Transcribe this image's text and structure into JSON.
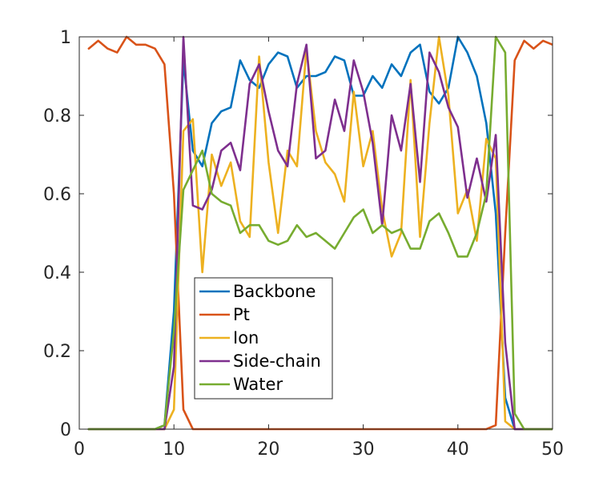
{
  "chart_data": {
    "type": "line",
    "title": "",
    "xlabel": "",
    "ylabel": "",
    "xlim": [
      0,
      50
    ],
    "ylim": [
      0,
      1
    ],
    "xticks": [
      0,
      10,
      20,
      30,
      40,
      50
    ],
    "yticks": [
      0,
      0.2,
      0.4,
      0.6,
      0.8,
      1
    ],
    "xtick_labels": [
      "0",
      "10",
      "20",
      "30",
      "40",
      "50"
    ],
    "ytick_labels": [
      "0",
      "0.2",
      "0.4",
      "0.6",
      "0.8",
      "1"
    ],
    "grid": false,
    "legend_position": "lower-left",
    "x": [
      1,
      2,
      3,
      4,
      5,
      6,
      7,
      8,
      9,
      10,
      11,
      12,
      13,
      14,
      15,
      16,
      17,
      18,
      19,
      20,
      21,
      22,
      23,
      24,
      25,
      26,
      27,
      28,
      29,
      30,
      31,
      32,
      33,
      34,
      35,
      36,
      37,
      38,
      39,
      40,
      41,
      42,
      43,
      44,
      45,
      46,
      47,
      48,
      49,
      50
    ],
    "series": [
      {
        "name": "Backbone",
        "color": "#0072BD",
        "values": [
          0,
          0,
          0,
          0,
          0,
          0,
          0,
          0,
          0.01,
          0.3,
          0.94,
          0.71,
          0.67,
          0.78,
          0.81,
          0.82,
          0.94,
          0.89,
          0.87,
          0.93,
          0.96,
          0.95,
          0.87,
          0.9,
          0.9,
          0.91,
          0.95,
          0.94,
          0.85,
          0.85,
          0.9,
          0.87,
          0.93,
          0.9,
          0.96,
          0.98,
          0.86,
          0.83,
          0.87,
          1.0,
          0.96,
          0.9,
          0.78,
          0.55,
          0.08,
          0,
          0,
          0,
          0,
          0
        ]
      },
      {
        "name": "Pt",
        "color": "#D95319",
        "values": [
          0.97,
          0.99,
          0.97,
          0.96,
          1.0,
          0.98,
          0.98,
          0.97,
          0.93,
          0.6,
          0.05,
          0,
          0,
          0,
          0,
          0,
          0,
          0,
          0,
          0,
          0,
          0,
          0,
          0,
          0,
          0,
          0,
          0,
          0,
          0,
          0,
          0,
          0,
          0,
          0,
          0,
          0,
          0,
          0,
          0,
          0,
          0,
          0,
          0.01,
          0.5,
          0.94,
          0.99,
          0.97,
          0.99,
          0.98
        ]
      },
      {
        "name": "Ion",
        "color": "#EDB120",
        "values": [
          0,
          0,
          0,
          0,
          0,
          0,
          0,
          0,
          0,
          0.05,
          0.76,
          0.79,
          0.4,
          0.7,
          0.62,
          0.68,
          0.53,
          0.49,
          0.95,
          0.68,
          0.5,
          0.71,
          0.67,
          0.97,
          0.76,
          0.68,
          0.65,
          0.58,
          0.86,
          0.67,
          0.76,
          0.56,
          0.44,
          0.5,
          0.89,
          0.49,
          0.78,
          1.0,
          0.85,
          0.55,
          0.61,
          0.48,
          0.74,
          0.69,
          0.02,
          0,
          0,
          0,
          0,
          0
        ]
      },
      {
        "name": "Side-chain",
        "color": "#7E2F8E",
        "values": [
          0,
          0,
          0,
          0,
          0,
          0,
          0,
          0,
          0,
          0.16,
          1.0,
          0.57,
          0.56,
          0.61,
          0.71,
          0.73,
          0.66,
          0.88,
          0.93,
          0.81,
          0.71,
          0.67,
          0.88,
          0.98,
          0.69,
          0.71,
          0.84,
          0.76,
          0.94,
          0.86,
          0.73,
          0.52,
          0.8,
          0.71,
          0.88,
          0.63,
          0.96,
          0.91,
          0.82,
          0.77,
          0.59,
          0.69,
          0.58,
          0.75,
          0.22,
          0,
          0,
          0,
          0,
          0
        ]
      },
      {
        "name": "Water",
        "color": "#77AC30",
        "values": [
          0,
          0,
          0,
          0,
          0,
          0,
          0,
          0,
          0.01,
          0.25,
          0.61,
          0.66,
          0.71,
          0.6,
          0.58,
          0.57,
          0.5,
          0.52,
          0.52,
          0.48,
          0.47,
          0.48,
          0.52,
          0.49,
          0.5,
          0.48,
          0.46,
          0.5,
          0.54,
          0.56,
          0.5,
          0.52,
          0.5,
          0.51,
          0.46,
          0.46,
          0.53,
          0.55,
          0.5,
          0.44,
          0.44,
          0.5,
          0.6,
          1.0,
          0.96,
          0.04,
          0,
          0,
          0,
          0
        ]
      }
    ]
  }
}
